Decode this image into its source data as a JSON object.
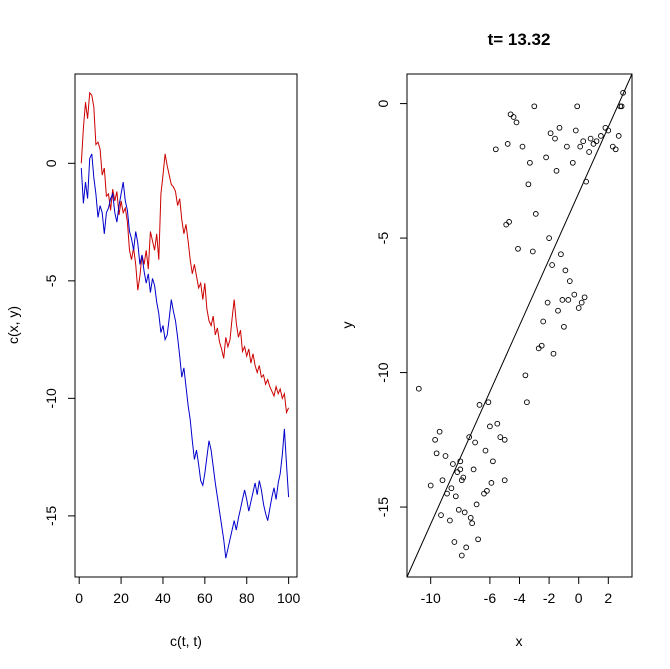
{
  "chart_data": [
    {
      "type": "line",
      "title": "",
      "xlabel": "c(t, t)",
      "ylabel": "c(x, y)",
      "xlim": [
        -2,
        104
      ],
      "ylim": [
        -17.6,
        3.8
      ],
      "xticks": [
        0,
        20,
        40,
        60,
        80,
        100
      ],
      "yticks": [
        0,
        -5,
        -10,
        -15
      ],
      "grid": false,
      "legend": "none",
      "series": [
        {
          "color": "#cc0000",
          "x": [
            1,
            2,
            3,
            4,
            5,
            6,
            7,
            8,
            9,
            10,
            11,
            12,
            13,
            14,
            15,
            16,
            17,
            18,
            19,
            20,
            21,
            22,
            23,
            24,
            25,
            26,
            27,
            28,
            29,
            30,
            31,
            32,
            33,
            34,
            35,
            36,
            37,
            38,
            39,
            40,
            41,
            42,
            43,
            44,
            45,
            46,
            47,
            48,
            49,
            50,
            51,
            52,
            53,
            54,
            55,
            56,
            57,
            58,
            59,
            60,
            61,
            62,
            63,
            64,
            65,
            66,
            67,
            68,
            69,
            70,
            71,
            72,
            73,
            74,
            75,
            76,
            77,
            78,
            79,
            80,
            81,
            82,
            83,
            84,
            85,
            86,
            87,
            88,
            89,
            90,
            91,
            92,
            93,
            94,
            95,
            96,
            97,
            98,
            99,
            100
          ],
          "values": [
            0.0,
            1.5,
            2.6,
            1.9,
            3.0,
            2.9,
            2.4,
            0.8,
            0.9,
            0.6,
            -0.5,
            -0.2,
            -1.4,
            -1.3,
            -2.0,
            -1.1,
            -1.6,
            -1.2,
            -2.2,
            -1.6,
            -2.1,
            -1.9,
            -2.5,
            -3.7,
            -4.1,
            -3.6,
            -4.3,
            -5.4,
            -4.8,
            -3.9,
            -4.3,
            -3.7,
            -4.5,
            -2.9,
            -3.3,
            -3.7,
            -3.0,
            -4.1,
            -1.3,
            -0.5,
            0.4,
            -0.1,
            -0.5,
            -0.9,
            -1.0,
            -1.2,
            -1.8,
            -1.5,
            -2.4,
            -3.0,
            -2.6,
            -3.3,
            -4.1,
            -4.7,
            -4.3,
            -4.8,
            -5.3,
            -5.1,
            -5.8,
            -5.1,
            -6.2,
            -6.7,
            -6.9,
            -6.5,
            -7.3,
            -7.0,
            -7.6,
            -7.9,
            -8.3,
            -7.4,
            -7.8,
            -7.5,
            -6.6,
            -5.8,
            -6.8,
            -7.4,
            -7.1,
            -8.0,
            -7.8,
            -8.2,
            -7.9,
            -8.5,
            -8.1,
            -8.6,
            -8.9,
            -8.6,
            -9.1,
            -9.0,
            -9.4,
            -9.2,
            -9.5,
            -9.7,
            -9.9,
            -9.5,
            -9.8,
            -9.6,
            -10.0,
            -9.8,
            -10.6,
            -10.4
          ]
        },
        {
          "color": "#0000cc",
          "x": [
            1,
            2,
            3,
            4,
            5,
            6,
            7,
            8,
            9,
            10,
            11,
            12,
            13,
            14,
            15,
            16,
            17,
            18,
            19,
            20,
            21,
            22,
            23,
            24,
            25,
            26,
            27,
            28,
            29,
            30,
            31,
            32,
            33,
            34,
            35,
            36,
            37,
            38,
            39,
            40,
            41,
            42,
            43,
            44,
            45,
            46,
            47,
            48,
            49,
            50,
            51,
            52,
            53,
            54,
            55,
            56,
            57,
            58,
            59,
            60,
            61,
            62,
            63,
            64,
            65,
            66,
            67,
            68,
            69,
            70,
            71,
            72,
            73,
            74,
            75,
            76,
            77,
            78,
            79,
            80,
            81,
            82,
            83,
            84,
            85,
            86,
            87,
            88,
            89,
            90,
            91,
            92,
            93,
            94,
            95,
            96,
            97,
            98,
            99,
            100
          ],
          "values": [
            -0.2,
            -1.7,
            -0.8,
            -1.5,
            0.2,
            0.4,
            -0.6,
            -1.3,
            -2.3,
            -1.8,
            -2.1,
            -3.0,
            -2.1,
            -1.9,
            -1.5,
            -1.3,
            -2.1,
            -2.5,
            -1.8,
            -1.3,
            -0.8,
            -1.6,
            -2.0,
            -2.9,
            -3.2,
            -3.7,
            -2.9,
            -3.4,
            -4.3,
            -3.9,
            -4.6,
            -5.1,
            -4.7,
            -5.5,
            -4.9,
            -5.2,
            -5.9,
            -6.4,
            -7.2,
            -6.9,
            -7.5,
            -7.3,
            -6.6,
            -5.8,
            -6.3,
            -6.7,
            -7.4,
            -8.2,
            -9.1,
            -8.7,
            -9.5,
            -10.3,
            -10.9,
            -11.8,
            -12.6,
            -12.2,
            -12.8,
            -13.5,
            -13.7,
            -13.2,
            -12.5,
            -11.8,
            -12.2,
            -12.9,
            -13.6,
            -14.2,
            -14.8,
            -15.4,
            -16.0,
            -16.8,
            -16.4,
            -16.0,
            -15.6,
            -15.2,
            -15.6,
            -15.1,
            -14.7,
            -14.3,
            -13.9,
            -14.3,
            -14.8,
            -14.4,
            -14.0,
            -13.6,
            -14.1,
            -13.5,
            -13.9,
            -14.5,
            -14.9,
            -15.2,
            -14.7,
            -14.2,
            -13.8,
            -14.3,
            -13.6,
            -13.2,
            -12.4,
            -11.3,
            -12.8,
            -14.2
          ]
        }
      ]
    },
    {
      "type": "scatter",
      "title": "t= 13.32",
      "xlabel": "x",
      "ylabel": "y",
      "xlim": [
        -11.6,
        3.6
      ],
      "ylim": [
        -17.6,
        1.1
      ],
      "xticks": [
        -10,
        -6,
        -4,
        -2,
        0,
        2
      ],
      "yticks": [
        0,
        -5,
        -10,
        -15
      ],
      "grid": false,
      "legend": "none",
      "marker": "open-circle",
      "points": [
        [
          -10.8,
          -10.6
        ],
        [
          -10.0,
          -14.2
        ],
        [
          -9.7,
          -12.5
        ],
        [
          -9.6,
          -13.0
        ],
        [
          -9.4,
          -12.2
        ],
        [
          -9.3,
          -15.3
        ],
        [
          -9.2,
          -14.0
        ],
        [
          -9.0,
          -13.1
        ],
        [
          -8.9,
          -14.5
        ],
        [
          -8.7,
          -15.5
        ],
        [
          -8.6,
          -14.3
        ],
        [
          -8.5,
          -13.4
        ],
        [
          -8.4,
          -16.3
        ],
        [
          -8.3,
          -14.6
        ],
        [
          -8.2,
          -13.7
        ],
        [
          -8.1,
          -15.1
        ],
        [
          -8.0,
          -13.6
        ],
        [
          -8.0,
          -13.3
        ],
        [
          -7.9,
          -14.0
        ],
        [
          -7.9,
          -16.8
        ],
        [
          -7.8,
          -13.9
        ],
        [
          -7.7,
          -15.2
        ],
        [
          -7.6,
          -16.5
        ],
        [
          -7.4,
          -12.4
        ],
        [
          -7.3,
          -15.4
        ],
        [
          -7.2,
          -15.6
        ],
        [
          -7.1,
          -13.6
        ],
        [
          -7.0,
          -12.6
        ],
        [
          -6.9,
          -14.9
        ],
        [
          -6.8,
          -16.2
        ],
        [
          -6.7,
          -11.2
        ],
        [
          -6.4,
          -14.5
        ],
        [
          -6.3,
          -12.9
        ],
        [
          -6.2,
          -14.4
        ],
        [
          -6.1,
          -11.1
        ],
        [
          -6.0,
          -12.0
        ],
        [
          -5.9,
          -14.1
        ],
        [
          -5.8,
          -13.3
        ],
        [
          -5.6,
          -1.7
        ],
        [
          -5.5,
          -11.9
        ],
        [
          -5.3,
          -12.4
        ],
        [
          -5.0,
          -14.0
        ],
        [
          -5.0,
          -12.5
        ],
        [
          -4.9,
          -4.5
        ],
        [
          -4.8,
          -1.5
        ],
        [
          -4.7,
          -4.4
        ],
        [
          -4.6,
          -0.4
        ],
        [
          -4.4,
          -0.5
        ],
        [
          -4.2,
          -0.7
        ],
        [
          -4.1,
          -5.4
        ],
        [
          -3.8,
          -1.6
        ],
        [
          -3.6,
          -10.1
        ],
        [
          -3.5,
          -11.1
        ],
        [
          -3.4,
          -3.0
        ],
        [
          -3.3,
          -2.2
        ],
        [
          -3.1,
          -5.5
        ],
        [
          -3.0,
          -0.1
        ],
        [
          -2.9,
          -4.1
        ],
        [
          -2.7,
          -9.1
        ],
        [
          -2.5,
          -9.0
        ],
        [
          -2.4,
          -8.1
        ],
        [
          -2.2,
          -2.0
        ],
        [
          -2.1,
          -7.4
        ],
        [
          -2.0,
          -5.0
        ],
        [
          -1.9,
          -1.1
        ],
        [
          -1.8,
          -6.0
        ],
        [
          -1.7,
          -9.3
        ],
        [
          -1.6,
          -1.3
        ],
        [
          -1.5,
          -2.5
        ],
        [
          -1.4,
          -7.7
        ],
        [
          -1.3,
          -0.9
        ],
        [
          -1.2,
          -5.6
        ],
        [
          -1.1,
          -7.3
        ],
        [
          -1.0,
          -8.3
        ],
        [
          -0.9,
          -6.2
        ],
        [
          -0.8,
          -1.6
        ],
        [
          -0.7,
          -7.3
        ],
        [
          -0.6,
          -6.6
        ],
        [
          -0.4,
          -2.2
        ],
        [
          -0.3,
          -7.1
        ],
        [
          -0.2,
          -1.0
        ],
        [
          -0.1,
          -0.1
        ],
        [
          0.0,
          -7.6
        ],
        [
          0.1,
          -1.6
        ],
        [
          0.2,
          -7.4
        ],
        [
          0.3,
          -1.4
        ],
        [
          0.4,
          -7.2
        ],
        [
          0.5,
          -2.9
        ],
        [
          0.7,
          -1.8
        ],
        [
          0.8,
          -1.3
        ],
        [
          1.0,
          -1.5
        ],
        [
          1.2,
          -1.4
        ],
        [
          1.5,
          -1.2
        ],
        [
          1.8,
          -0.9
        ],
        [
          2.0,
          -1.0
        ],
        [
          2.3,
          -1.6
        ],
        [
          2.5,
          -1.7
        ],
        [
          2.7,
          -1.2
        ],
        [
          2.8,
          -0.1
        ],
        [
          2.9,
          -0.1
        ],
        [
          3.0,
          0.4
        ]
      ],
      "fit_line": {
        "x": [
          -11.6,
          3.6
        ],
        "y": [
          -17.6,
          1.1
        ]
      }
    }
  ]
}
